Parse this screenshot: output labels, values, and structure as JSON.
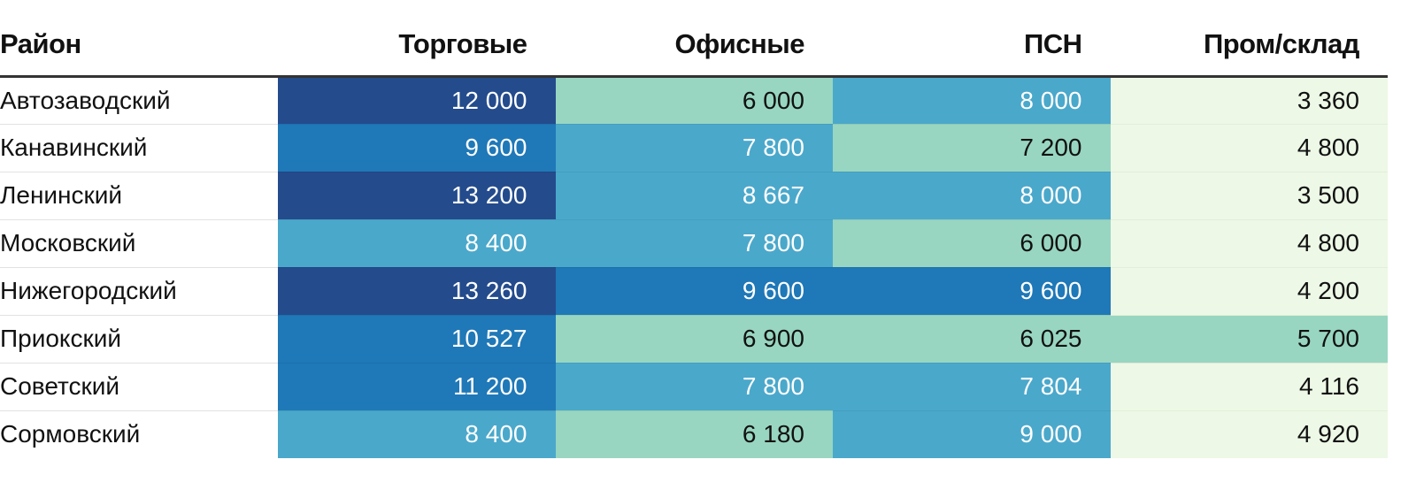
{
  "chart_data": {
    "type": "table",
    "columns": [
      "Район",
      "Торговые",
      "Офисные",
      "ПСН",
      "Пром/склад"
    ],
    "rows": [
      {
        "district": "Автозаводский",
        "values": [
          "12 000",
          "6 000",
          "8 000",
          "3 360"
        ],
        "nums": [
          12000,
          6000,
          8000,
          3360
        ]
      },
      {
        "district": "Канавинский",
        "values": [
          "9 600",
          "7 800",
          "7 200",
          "4 800"
        ],
        "nums": [
          9600,
          7800,
          7200,
          4800
        ]
      },
      {
        "district": "Ленинский",
        "values": [
          "13 200",
          "8 667",
          "8 000",
          "3 500"
        ],
        "nums": [
          13200,
          8667,
          8000,
          3500
        ]
      },
      {
        "district": "Московский",
        "values": [
          "8 400",
          "7 800",
          "6 000",
          "4 800"
        ],
        "nums": [
          8400,
          7800,
          6000,
          4800
        ]
      },
      {
        "district": "Нижегородский",
        "values": [
          "13 260",
          "9 600",
          "9 600",
          "4 200"
        ],
        "nums": [
          13260,
          9600,
          9600,
          4200
        ]
      },
      {
        "district": "Приокский",
        "values": [
          "10 527",
          "6 900",
          "6 025",
          "5 700"
        ],
        "nums": [
          10527,
          6900,
          6025,
          5700
        ]
      },
      {
        "district": "Советский",
        "values": [
          "11 200",
          "7 800",
          "7 804",
          "4 116"
        ],
        "nums": [
          11200,
          7800,
          7804,
          4116
        ]
      },
      {
        "district": "Сормовский",
        "values": [
          "8 400",
          "6 180",
          "9 000",
          "4 920"
        ],
        "nums": [
          8400,
          6180,
          9000,
          4920
        ]
      }
    ],
    "color_scale": [
      {
        "min": 0,
        "bg": "#edf8e6",
        "fg": "#111111"
      },
      {
        "min": 5000,
        "bg": "#98d6c1",
        "fg": "#111111"
      },
      {
        "min": 7500,
        "bg": "#4aa8cb",
        "fg": "#ffffff"
      },
      {
        "min": 9500,
        "bg": "#1f78b7",
        "fg": "#ffffff"
      },
      {
        "min": 12000,
        "bg": "#244b8c",
        "fg": "#ffffff"
      }
    ]
  }
}
